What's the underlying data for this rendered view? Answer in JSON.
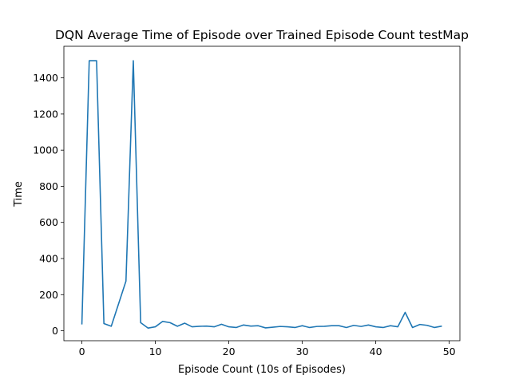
{
  "chart_data": {
    "type": "line",
    "title": "DQN Average Time of Episode over Trained Episode Count testMap",
    "xlabel": "Episode Count (10s of Episodes)",
    "ylabel": "Time",
    "xlim": [
      -2.45,
      51.45
    ],
    "ylim": [
      -55,
      1575
    ],
    "xticks": [
      0,
      10,
      20,
      30,
      40,
      50
    ],
    "yticks": [
      0,
      200,
      400,
      600,
      800,
      1000,
      1200,
      1400
    ],
    "grid": false,
    "legend": "none",
    "series": [
      {
        "color": "#1f77b4",
        "x": [
          0,
          1,
          2,
          3,
          4,
          5,
          6,
          7,
          8,
          9,
          10,
          11,
          12,
          13,
          14,
          15,
          16,
          17,
          18,
          19,
          20,
          21,
          22,
          23,
          24,
          25,
          26,
          27,
          28,
          29,
          30,
          31,
          32,
          33,
          34,
          35,
          36,
          37,
          38,
          39,
          40,
          41,
          42,
          43,
          44,
          45,
          46,
          47,
          48,
          49
        ],
        "y": [
          35,
          1495,
          1495,
          40,
          25,
          150,
          275,
          1495,
          45,
          15,
          22,
          52,
          45,
          25,
          42,
          22,
          25,
          26,
          22,
          36,
          22,
          18,
          32,
          26,
          28,
          16,
          20,
          24,
          22,
          18,
          28,
          18,
          24,
          25,
          28,
          28,
          18,
          30,
          24,
          32,
          22,
          18,
          28,
          22,
          102,
          18,
          35,
          30,
          18,
          26
        ]
      }
    ]
  }
}
